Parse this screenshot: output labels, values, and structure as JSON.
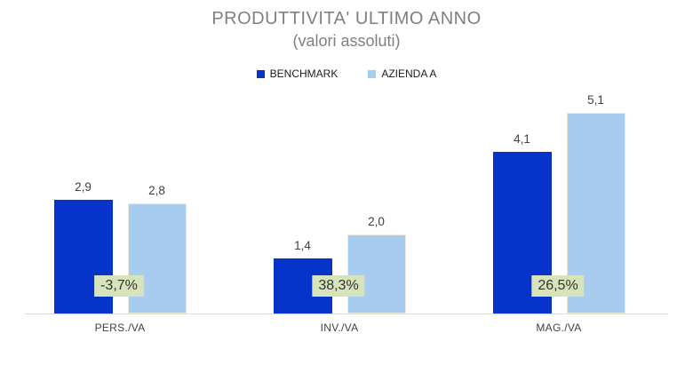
{
  "title": {
    "line1": "PRODUTTIVITA' ULTIMO ANNO",
    "line2": "(valori assoluti)"
  },
  "legend": {
    "items": [
      {
        "label": "BENCHMARK",
        "color": "#0634cb"
      },
      {
        "label": "AZIENDA A",
        "color": "#a8cbf0"
      }
    ]
  },
  "chart_data": {
    "type": "bar",
    "title": "PRODUTTIVITA' ULTIMO ANNO",
    "subtitle": "(valori assoluti)",
    "categories": [
      "PERS./VA",
      "INV./VA",
      "MAG./VA"
    ],
    "series": [
      {
        "name": "BENCHMARK",
        "color": "#0634cb",
        "values": [
          2.9,
          1.4,
          4.1
        ],
        "value_labels": [
          "2,9",
          "1,4",
          "4,1"
        ]
      },
      {
        "name": "AZIENDA A",
        "color": "#a8cbf0",
        "values": [
          2.8,
          2.0,
          5.1
        ],
        "value_labels": [
          "2,8",
          "2,0",
          "5,1"
        ]
      }
    ],
    "percent_labels": {
      "values": [
        "-3,7%",
        "38,3%",
        "26,5%"
      ],
      "background": "#d6e3bb",
      "text_color": "#333333"
    },
    "ylim": [
      0,
      5.8
    ],
    "grid": false,
    "legend_position": "top",
    "axis_line_color": "#d9d9d9",
    "value_label_color": "#404040"
  }
}
